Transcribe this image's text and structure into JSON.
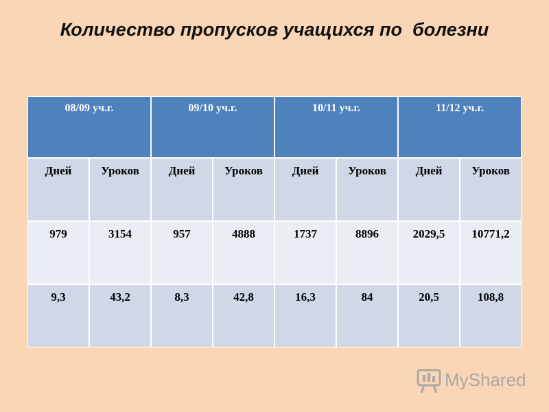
{
  "title": "Количество пропусков учащихся по  болезни",
  "table": {
    "header": [
      "08/09 уч.г.",
      "09/10 уч.г.",
      "10/11 уч.г.",
      "11/12 уч.г."
    ],
    "rows": [
      [
        "Дней",
        "Уроков",
        "Дней",
        "Уроков",
        "Дней",
        "Уроков",
        "Дней",
        "Уроков"
      ],
      [
        "979",
        "3154",
        "957",
        "4888",
        "1737",
        "8896",
        "2029,5",
        "10771,2"
      ],
      [
        "9,3",
        "43,2",
        "8,3",
        "42,8",
        "16,3",
        "84",
        "20,5",
        "108,8"
      ]
    ]
  },
  "watermark": "MyShared"
}
